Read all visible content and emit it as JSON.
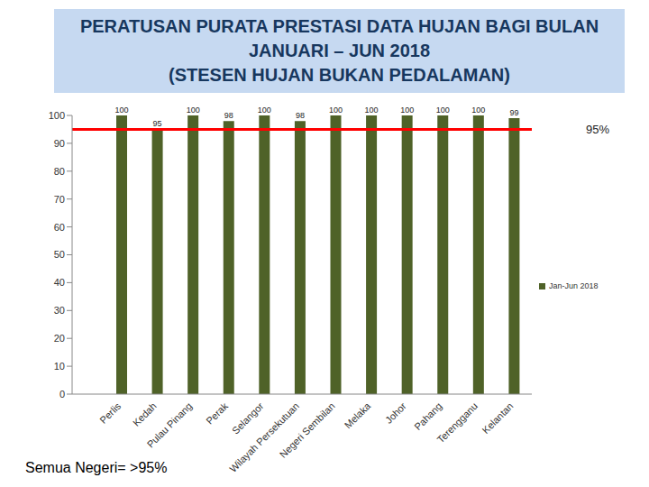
{
  "chart_data": {
    "type": "bar",
    "title": [
      "PERATUSAN PURATA PRESTASI DATA HUJAN BAGI BULAN",
      "JANUARI – JUN 2018",
      "(STESEN HUJAN BUKAN PEDALAMAN)"
    ],
    "categories": [
      "Perlis",
      "Kedah",
      "Pulau Pinang",
      "Perak",
      "Selangor",
      "Wilayah Persekutuan",
      "Negeri Sembilan",
      "Melaka",
      "Johor",
      "Pahang",
      "Terengganu",
      "Kelantan"
    ],
    "series": [
      {
        "name": "Jan-Jun 2018",
        "color": "#4f6228",
        "values": [
          100,
          95,
          100,
          98,
          100,
          98,
          100,
          100,
          100,
          100,
          100,
          99
        ]
      }
    ],
    "ylim": [
      0,
      100
    ],
    "yticks": [
      0,
      10,
      20,
      30,
      40,
      50,
      60,
      70,
      80,
      90,
      100
    ],
    "grid": false,
    "legend": "right",
    "data_labels": true,
    "reference_lines": [
      {
        "y": 95,
        "label": "95%",
        "color": "#ff0000"
      }
    ],
    "annotations": [
      "Semua Negeri= >95%"
    ]
  }
}
